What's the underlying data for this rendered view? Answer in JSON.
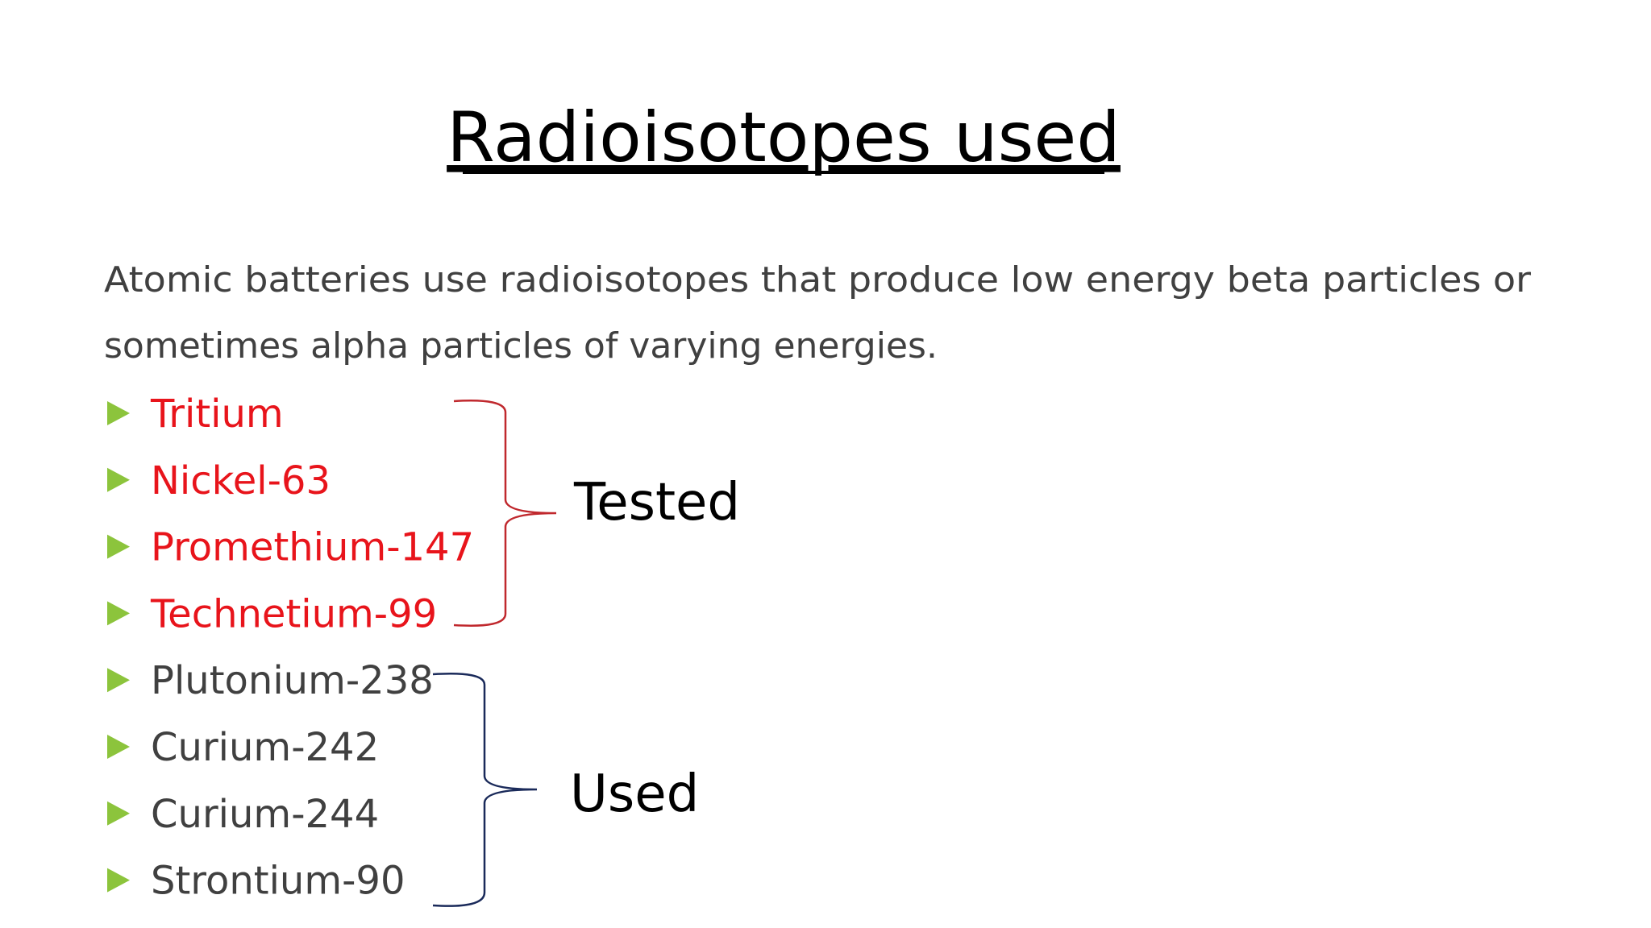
{
  "title": "Radioisotopes used",
  "intro": [
    "Atomic batteries use radioisotopes that produce low energy beta particles or",
    "sometimes alpha particles of varying energies."
  ],
  "groups": [
    {
      "label": "Tested",
      "items": [
        "Tritium",
        "Nickel-63",
        "Promethium-147",
        "Technetium-99"
      ]
    },
    {
      "label": "Used",
      "items": [
        "Plutonium-238",
        "Curium-242",
        "Curium-244",
        "Strontium-90"
      ]
    }
  ]
}
